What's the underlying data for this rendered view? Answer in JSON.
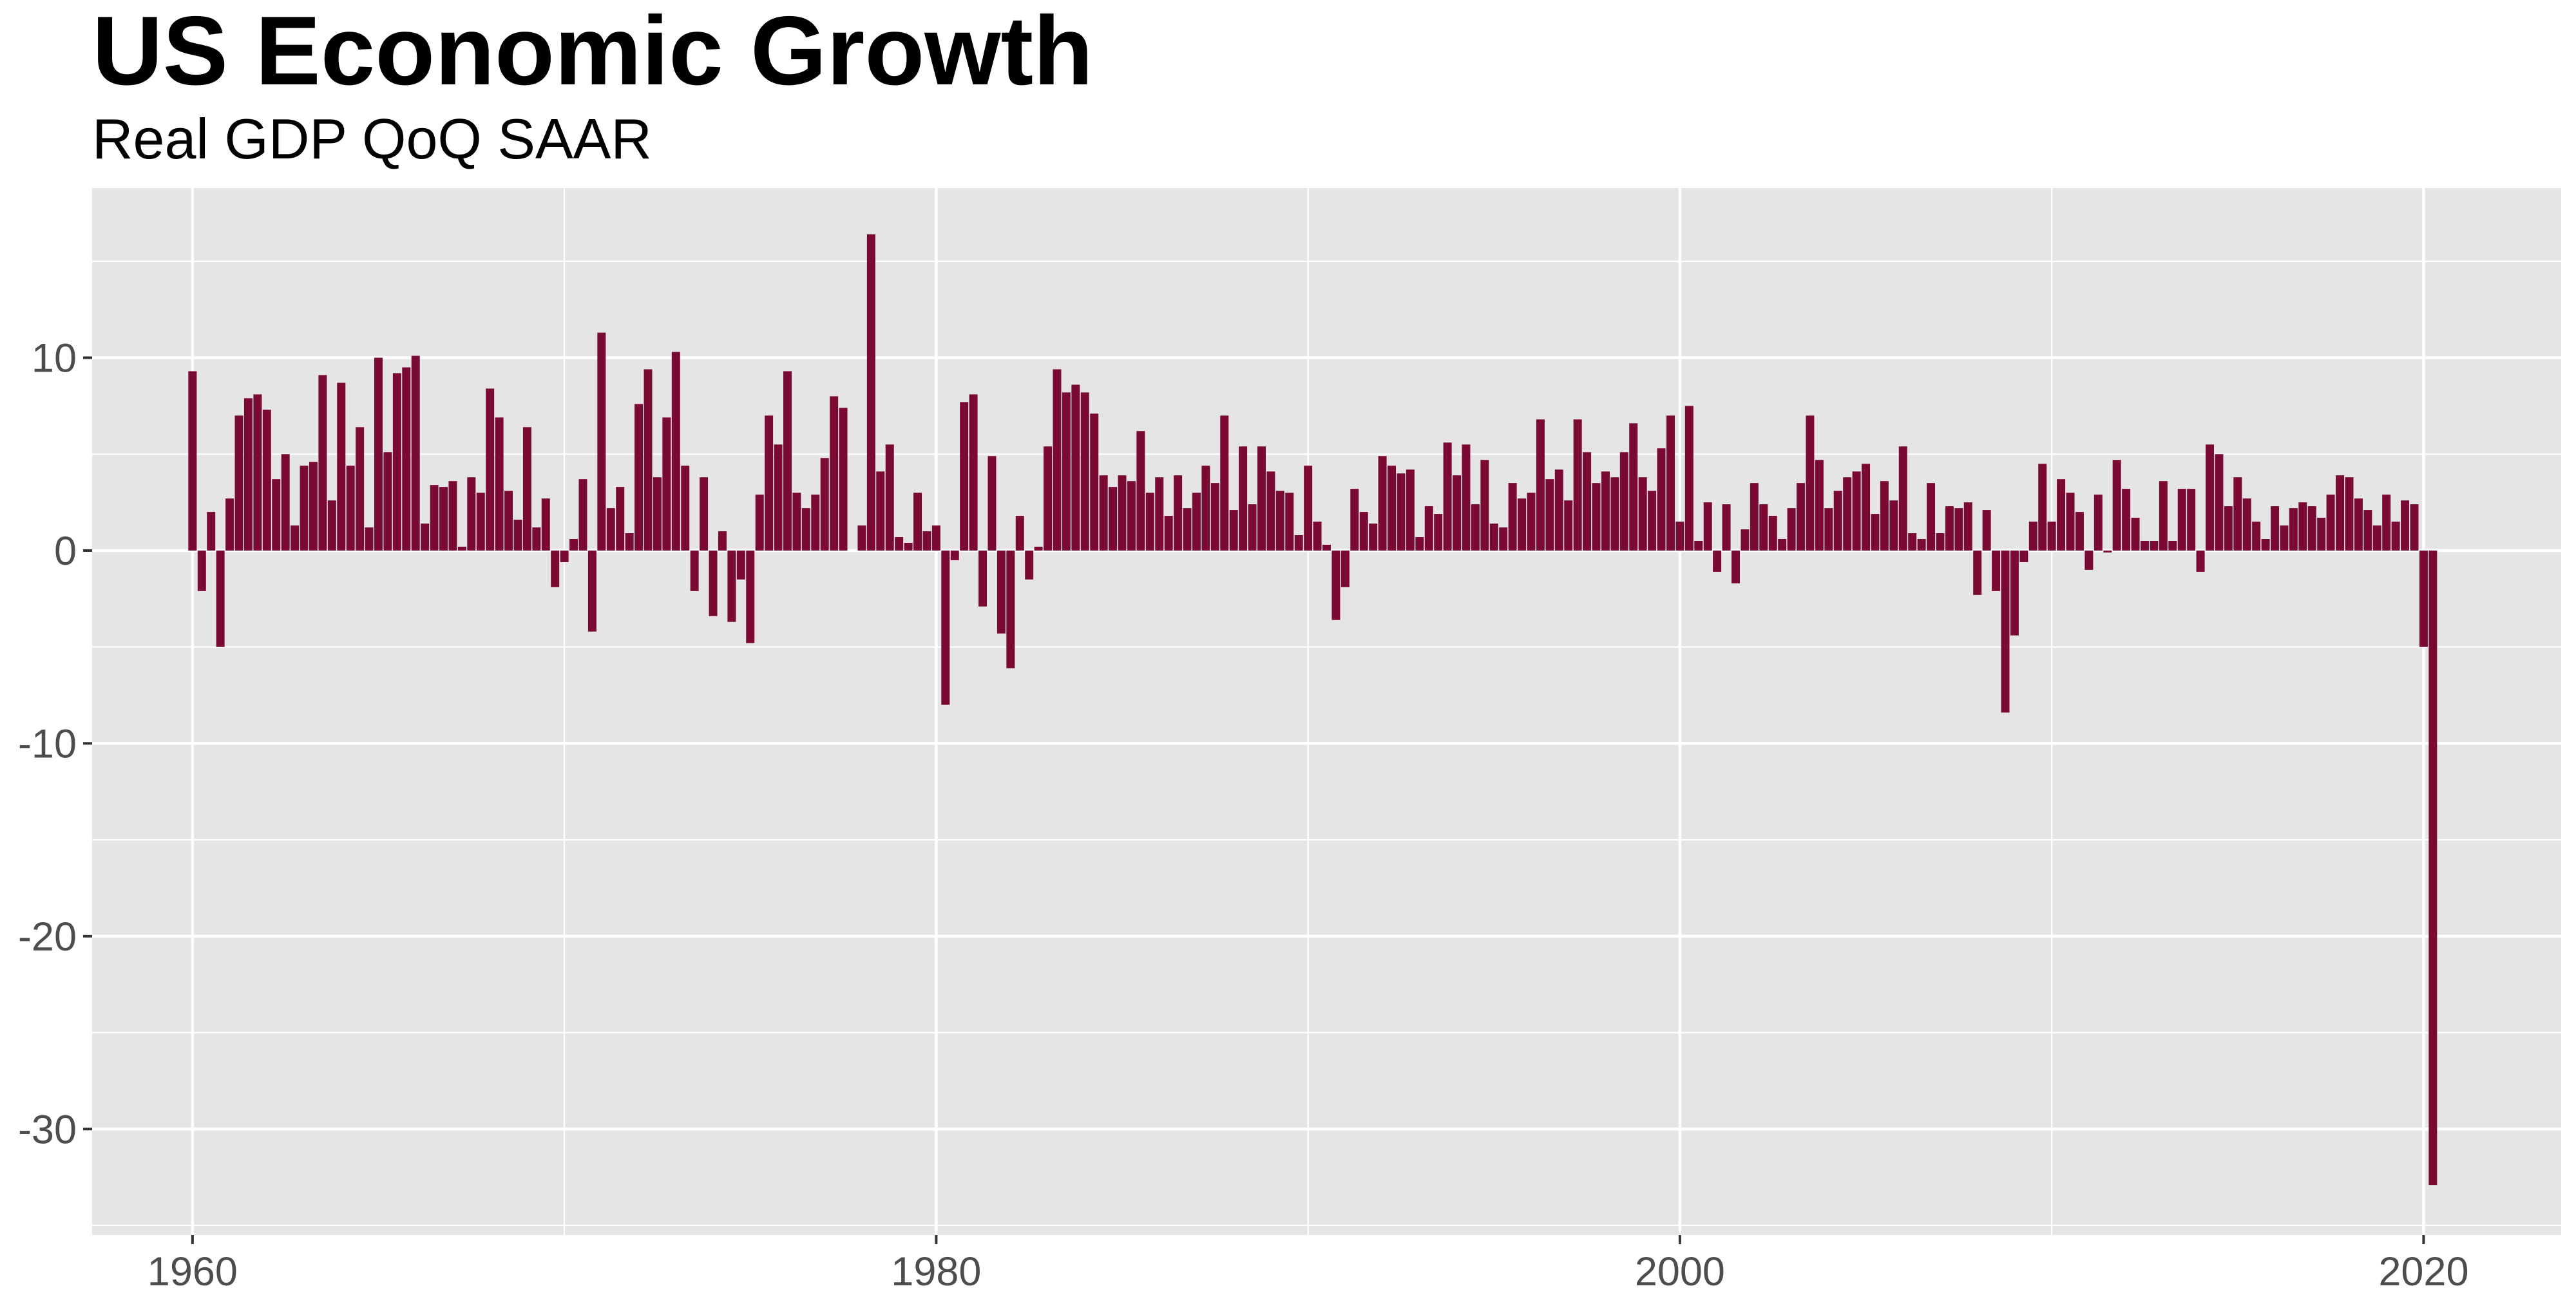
{
  "chart_data": {
    "type": "bar",
    "title": "US Economic Growth",
    "subtitle": "Real GDP QoQ SAAR",
    "xlabel": "",
    "ylabel": "",
    "xlim": [
      1957.3,
      2023.7
    ],
    "ylim": [
      -35.5,
      18.8
    ],
    "x_ticks": [
      1960,
      1980,
      2000,
      2020
    ],
    "y_ticks": [
      10,
      0,
      -10,
      -20,
      -30
    ],
    "grid": true,
    "legend": "none",
    "colors": {
      "bar": "#7a0a34",
      "panel": "#e5e5e5",
      "grid": "#ffffff"
    },
    "series": [
      {
        "start": 1960.0,
        "step": 0.25,
        "values": [
          9.3,
          -2.1,
          2.0,
          -5.0,
          2.7,
          7.0,
          7.9,
          8.1,
          7.3,
          3.7,
          5.0,
          1.3,
          4.4,
          4.6,
          9.1,
          2.6,
          8.7,
          4.4,
          6.4,
          1.2,
          10.0,
          5.1,
          9.2,
          9.5,
          10.1,
          1.4,
          3.4,
          3.3,
          3.6,
          0.2,
          3.8,
          3.0,
          8.4,
          6.9,
          3.1,
          1.6,
          6.4,
          1.2,
          2.7,
          -1.9,
          -0.6,
          0.6,
          3.7,
          -4.2,
          11.3,
          2.2,
          3.3,
          0.9,
          7.6,
          9.4,
          3.8,
          6.9,
          10.3,
          4.4,
          -2.1,
          3.8,
          -3.4,
          1.0,
          -3.7,
          -1.5,
          -4.8,
          2.9,
          7.0,
          5.5,
          9.3,
          3.0,
          2.2,
          2.9,
          4.8,
          8.0,
          7.4,
          0.0,
          1.3,
          16.4,
          4.1,
          5.5,
          0.7,
          0.4,
          3.0,
          1.0,
          1.3,
          -8.0,
          -0.5,
          7.7,
          8.1,
          -2.9,
          4.9,
          -4.3,
          -6.1,
          1.8,
          -1.5,
          0.2,
          5.4,
          9.4,
          8.2,
          8.6,
          8.2,
          7.1,
          3.9,
          3.3,
          3.9,
          3.6,
          6.2,
          3.0,
          3.8,
          1.8,
          3.9,
          2.2,
          3.0,
          4.4,
          3.5,
          7.0,
          2.1,
          5.4,
          2.4,
          5.4,
          4.1,
          3.1,
          3.0,
          0.8,
          4.4,
          1.5,
          0.3,
          -3.6,
          -1.9,
          3.2,
          2.0,
          1.4,
          4.9,
          4.4,
          4.0,
          4.2,
          0.7,
          2.3,
          1.9,
          5.6,
          3.9,
          5.5,
          2.4,
          4.7,
          1.4,
          1.2,
          3.5,
          2.7,
          3.0,
          6.8,
          3.7,
          4.2,
          2.6,
          6.8,
          5.1,
          3.5,
          4.1,
          3.8,
          5.1,
          6.6,
          3.8,
          3.1,
          5.3,
          7.0,
          1.5,
          7.5,
          0.5,
          2.5,
          -1.1,
          2.4,
          -1.7,
          1.1,
          3.5,
          2.4,
          1.8,
          0.6,
          2.2,
          3.5,
          7.0,
          4.7,
          2.2,
          3.1,
          3.8,
          4.1,
          4.5,
          1.9,
          3.6,
          2.6,
          5.4,
          0.9,
          0.6,
          3.5,
          0.9,
          2.3,
          2.2,
          2.5,
          -2.3,
          2.1,
          -2.1,
          -8.4,
          -4.4,
          -0.6,
          1.5,
          4.5,
          1.5,
          3.7,
          3.0,
          2.0,
          -1.0,
          2.9,
          -0.1,
          4.7,
          3.2,
          1.7,
          0.5,
          0.5,
          3.6,
          0.5,
          3.2,
          3.2,
          -1.1,
          5.5,
          5.0,
          2.3,
          3.8,
          2.7,
          1.5,
          0.6,
          2.3,
          1.3,
          2.2,
          2.5,
          2.3,
          1.7,
          2.9,
          3.9,
          3.8,
          2.7,
          2.1,
          1.3,
          2.9,
          1.5,
          2.6,
          2.4,
          -5.0,
          -32.9
        ]
      }
    ]
  }
}
